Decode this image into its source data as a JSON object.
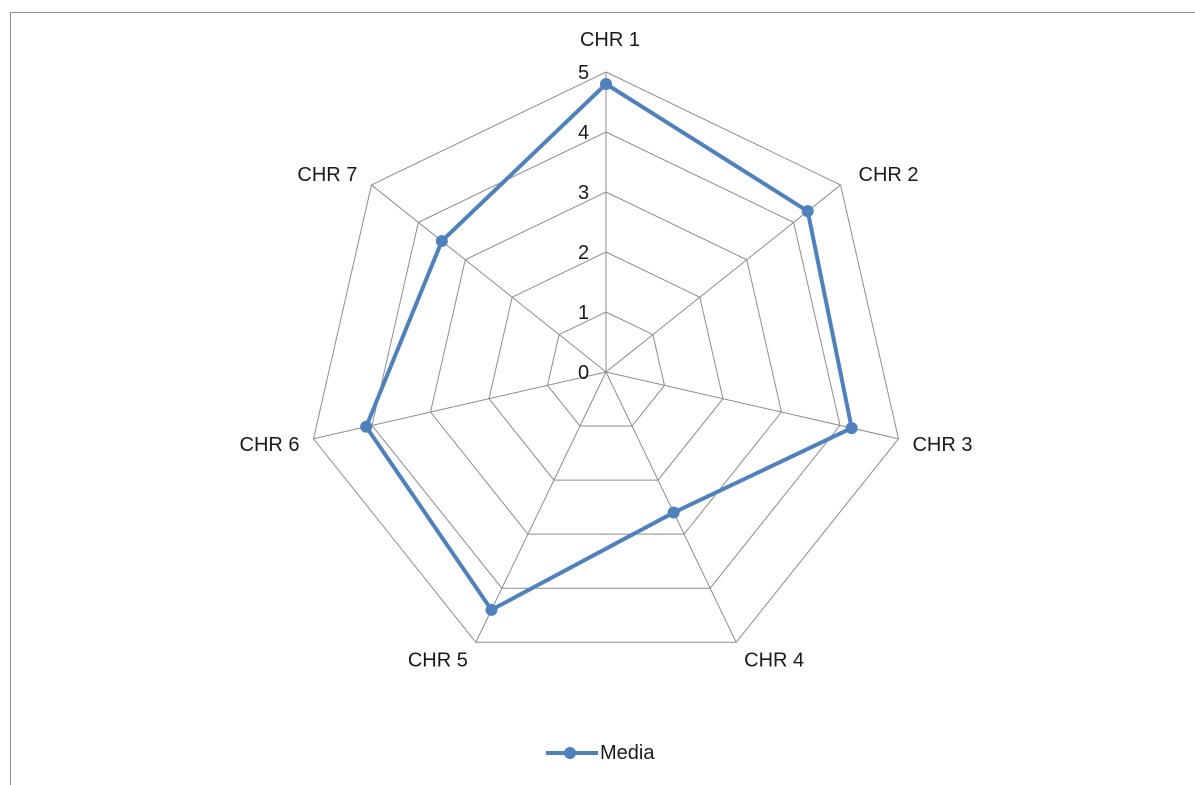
{
  "chart_data": {
    "type": "radar",
    "categories": [
      "CHR 1",
      "CHR 2",
      "CHR 3",
      "CHR 4",
      "CHR 5",
      "CHR 6",
      "CHR 7"
    ],
    "series": [
      {
        "name": "Media",
        "values": [
          4.8,
          4.3,
          4.2,
          2.6,
          4.4,
          4.1,
          3.5
        ],
        "color": "#4f81bd"
      }
    ],
    "rlim": [
      0,
      5
    ],
    "ticks": [
      "0",
      "1",
      "2",
      "3",
      "4",
      "5"
    ],
    "grid": true,
    "legend_position": "bottom"
  }
}
